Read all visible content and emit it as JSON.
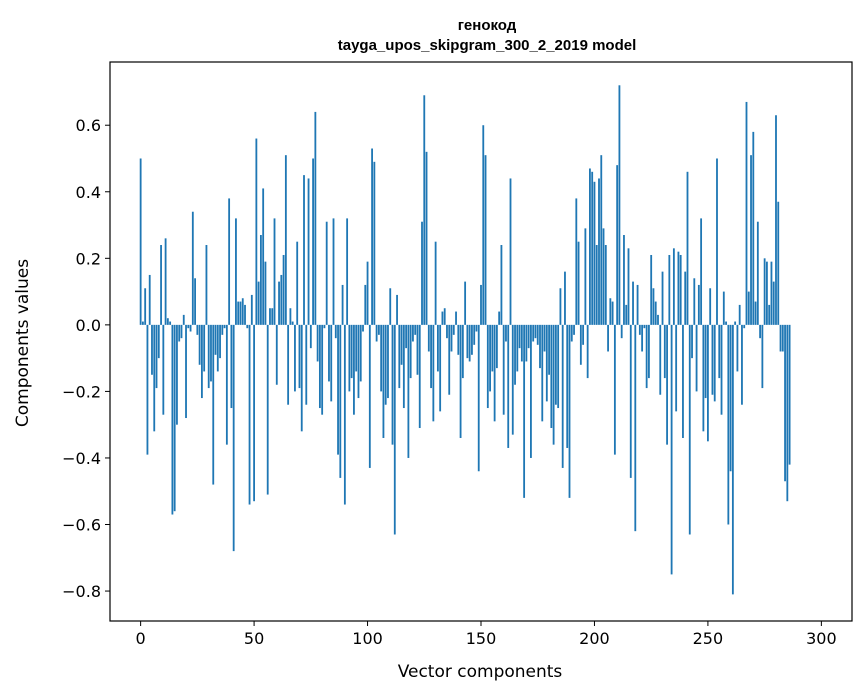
{
  "chart_data": {
    "type": "bar",
    "title_line1": "генокод",
    "title_line2": "tayga_upos_skipgram_300_2_2019 model",
    "xlabel": "Vector components",
    "ylabel": "Components values",
    "xlim": [
      -13.5,
      313.5
    ],
    "ylim": [
      -0.89,
      0.79
    ],
    "xticks": [
      0,
      50,
      100,
      150,
      200,
      250,
      300
    ],
    "xtick_labels": [
      "0",
      "50",
      "100",
      "150",
      "200",
      "250",
      "300"
    ],
    "yticks": [
      -0.8,
      -0.6,
      -0.4,
      -0.2,
      0.0,
      0.2,
      0.4,
      0.6
    ],
    "ytick_labels": [
      "−0.8",
      "−0.6",
      "−0.4",
      "−0.2",
      "0.0",
      "0.2",
      "0.4",
      "0.6"
    ],
    "bar_color": "#1f77b4",
    "grid": false,
    "values": [
      0.5,
      0.01,
      0.11,
      -0.39,
      0.15,
      -0.15,
      -0.32,
      -0.19,
      -0.1,
      0.24,
      -0.27,
      0.26,
      0.02,
      0.01,
      -0.57,
      -0.56,
      -0.3,
      -0.05,
      -0.04,
      0.03,
      -0.28,
      -0.01,
      -0.02,
      0.34,
      0.14,
      -0.03,
      -0.12,
      -0.22,
      -0.14,
      0.24,
      -0.19,
      -0.17,
      -0.48,
      -0.09,
      -0.14,
      -0.1,
      -0.03,
      -0.01,
      -0.36,
      0.38,
      -0.25,
      -0.68,
      0.32,
      0.07,
      0.07,
      0.08,
      0.06,
      -0.01,
      -0.54,
      0.09,
      -0.53,
      0.56,
      0.13,
      0.27,
      0.41,
      0.19,
      -0.51,
      0.05,
      0.05,
      0.32,
      -0.18,
      0.13,
      0.15,
      0.21,
      0.51,
      -0.24,
      0.05,
      0.01,
      -0.2,
      0.25,
      -0.19,
      -0.32,
      0.45,
      -0.24,
      0.44,
      -0.07,
      0.5,
      0.64,
      -0.11,
      -0.25,
      -0.27,
      -0.01,
      0.31,
      -0.17,
      -0.23,
      0.32,
      -0.04,
      -0.39,
      -0.46,
      0.12,
      -0.54,
      0.32,
      -0.2,
      -0.16,
      -0.27,
      -0.14,
      -0.22,
      -0.17,
      -0.02,
      0.12,
      0.19,
      -0.43,
      0.53,
      0.49,
      -0.05,
      -0.03,
      -0.2,
      -0.34,
      -0.24,
      -0.22,
      0.11,
      -0.36,
      -0.63,
      0.09,
      -0.19,
      -0.12,
      -0.25,
      -0.07,
      -0.4,
      -0.16,
      -0.05,
      -0.03,
      -0.15,
      -0.31,
      0.31,
      0.69,
      0.52,
      -0.08,
      -0.19,
      -0.29,
      0.25,
      -0.14,
      -0.26,
      0.04,
      0.05,
      -0.04,
      -0.21,
      -0.08,
      -0.03,
      0.04,
      -0.09,
      -0.34,
      -0.16,
      0.13,
      -0.1,
      -0.11,
      -0.09,
      -0.06,
      -0.02,
      -0.44,
      0.12,
      0.6,
      0.51,
      -0.25,
      -0.2,
      -0.14,
      -0.29,
      -0.13,
      0.04,
      0.24,
      -0.27,
      -0.05,
      -0.37,
      0.44,
      -0.33,
      -0.18,
      -0.14,
      -0.07,
      -0.11,
      -0.52,
      -0.11,
      -0.07,
      -0.4,
      -0.05,
      -0.04,
      -0.06,
      -0.13,
      -0.29,
      -0.08,
      -0.23,
      -0.15,
      -0.31,
      -0.36,
      -0.24,
      -0.25,
      0.11,
      -0.43,
      0.16,
      -0.37,
      -0.52,
      -0.05,
      -0.03,
      0.38,
      0.25,
      -0.12,
      -0.06,
      0.29,
      -0.16,
      0.47,
      0.46,
      0.43,
      0.24,
      0.44,
      0.51,
      0.29,
      0.24,
      -0.08,
      0.08,
      0.07,
      -0.39,
      0.48,
      0.72,
      -0.04,
      0.27,
      0.06,
      0.23,
      -0.46,
      0.13,
      -0.62,
      0.12,
      -0.03,
      -0.08,
      -0.01,
      -0.19,
      -0.16,
      0.21,
      0.11,
      0.07,
      0.03,
      -0.21,
      0.16,
      -0.16,
      -0.36,
      0.21,
      -0.75,
      0.23,
      -0.26,
      0.22,
      0.21,
      -0.34,
      0.16,
      0.46,
      -0.63,
      -0.1,
      0.14,
      -0.2,
      0.12,
      0.32,
      -0.32,
      -0.22,
      -0.35,
      0.11,
      -0.21,
      -0.23,
      0.5,
      -0.16,
      -0.27,
      0.1,
      0.01,
      -0.6,
      -0.44,
      -0.81,
      0.01,
      -0.14,
      0.06,
      -0.24,
      -0.01,
      0.67,
      0.1,
      0.51,
      0.58,
      0.07,
      0.31,
      -0.04,
      -0.19,
      0.2,
      0.19,
      0.06,
      0.19,
      0.13,
      0.63,
      0.37,
      -0.08,
      -0.08,
      -0.47,
      -0.53,
      -0.42
    ]
  }
}
